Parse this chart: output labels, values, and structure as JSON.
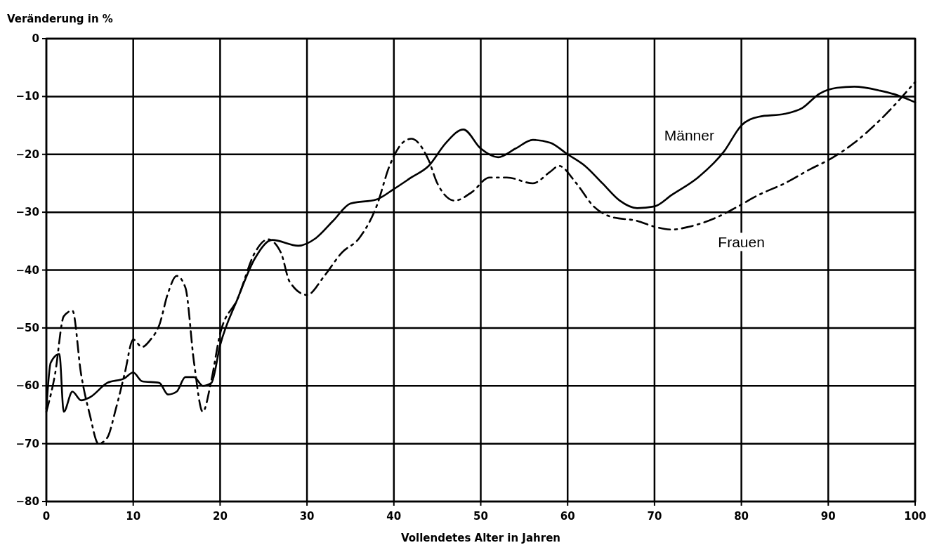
{
  "chart_data": {
    "type": "line",
    "ylabel": "Veränderung in %",
    "xlabel": "Vollendetes Alter in Jahren",
    "xlim": [
      0,
      100
    ],
    "xticks": [
      0,
      10,
      20,
      30,
      40,
      50,
      60,
      70,
      80,
      90,
      100
    ],
    "ylim": [
      -80,
      0
    ],
    "yticks": [
      -80,
      -70,
      -60,
      -50,
      -40,
      -30,
      -20,
      -10,
      0
    ],
    "grid": true,
    "marker": "none",
    "series": [
      {
        "name": "Männer",
        "color": "#000000",
        "line_style": "solid",
        "x": [
          0,
          0.5,
          1.5,
          2,
          3,
          4,
          5,
          7,
          9,
          10,
          11,
          13,
          14,
          15,
          16,
          17,
          18,
          19,
          20,
          22,
          24,
          26,
          29,
          31,
          33,
          35,
          38,
          40,
          42,
          44,
          46,
          48,
          50,
          52,
          54,
          56,
          58,
          60,
          62,
          64,
          66,
          68,
          70,
          72,
          75,
          78,
          80,
          82,
          85,
          87,
          89,
          91,
          93,
          96,
          98,
          100
        ],
        "values": [
          -64,
          -56,
          -54.5,
          -64.5,
          -61,
          -62.5,
          -62,
          -59.5,
          -58.7,
          -57.7,
          -59.2,
          -59.5,
          -61.5,
          -61,
          -58.5,
          -58.5,
          -60,
          -59.5,
          -53,
          -45,
          -38,
          -34.8,
          -35.8,
          -34.5,
          -31.5,
          -28.5,
          -27.8,
          -26,
          -24,
          -22,
          -18,
          -15.7,
          -19,
          -20.5,
          -19,
          -17.5,
          -18,
          -20,
          -22,
          -25,
          -28,
          -29.3,
          -29,
          -27,
          -24,
          -19.5,
          -15,
          -13.5,
          -13,
          -12,
          -9.5,
          -8.5,
          -8.3,
          -9,
          -9.8,
          -11
        ]
      },
      {
        "name": "Frauen",
        "color": "#000000",
        "line_style": "dashdot",
        "x": [
          0,
          1,
          2,
          3,
          4,
          5,
          6,
          7,
          8,
          9,
          10,
          11,
          12,
          13,
          14,
          15,
          16,
          17,
          18,
          19,
          20,
          22,
          24,
          25.5,
          27,
          28,
          30,
          32,
          34,
          36,
          38,
          39.5,
          41,
          42,
          44,
          45,
          47,
          49,
          51,
          53,
          56,
          58,
          59,
          61,
          63,
          65,
          68,
          70,
          72,
          74,
          77,
          79,
          82,
          85,
          88,
          90,
          93,
          96,
          100
        ],
        "values": [
          -64.5,
          -58,
          -48,
          -47,
          -58,
          -65,
          -70,
          -69,
          -64,
          -58,
          -52,
          -53.3,
          -52,
          -49.5,
          -44,
          -41,
          -43,
          -56,
          -64.5,
          -59,
          -51,
          -45,
          -37,
          -34.7,
          -37,
          -42,
          -44.3,
          -41,
          -37,
          -34.5,
          -29,
          -22,
          -18,
          -17.3,
          -21,
          -25,
          -28,
          -26.5,
          -24,
          -24,
          -25,
          -23,
          -22,
          -25,
          -29,
          -30.8,
          -31.5,
          -32.5,
          -33,
          -32.5,
          -31,
          -29.5,
          -27,
          -25,
          -22.5,
          -21,
          -18,
          -14,
          -7.5
        ]
      }
    ]
  }
}
